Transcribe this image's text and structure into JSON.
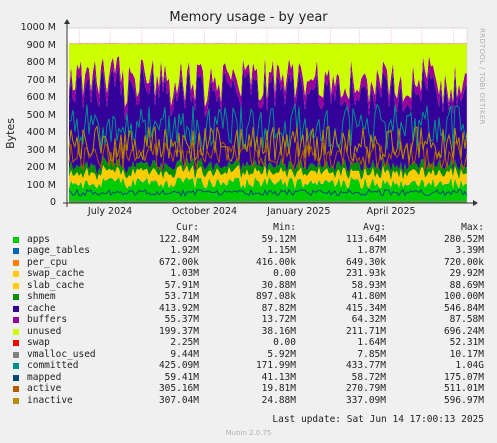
{
  "chart_data": {
    "type": "area",
    "title": "Memory usage - by year",
    "ylabel": "Bytes",
    "ylim": [
      0,
      1000000000
    ],
    "yticks": [
      "0",
      "100 M",
      "200 M",
      "300 M",
      "400 M",
      "500 M",
      "600 M",
      "700 M",
      "800 M",
      "900 M",
      "1000 M"
    ],
    "xticks": [
      "July 2024",
      "October 2024",
      "January 2025",
      "April 2025"
    ],
    "x_range": [
      "2024-05-20",
      "2025-06-14"
    ],
    "grid": true,
    "side_label": "RRDTOOL / TOBI OETIKER",
    "legend_headers": [
      "Cur:",
      "Min:",
      "Avg:",
      "Max:"
    ],
    "series": [
      {
        "name": "apps",
        "color": "#00cc00",
        "cur": "122.84M",
        "min": "59.12M",
        "avg": "113.64M",
        "max": "280.52M",
        "avg_mb": 113.6
      },
      {
        "name": "page_tables",
        "color": "#0066b3",
        "cur": "1.92M",
        "min": "1.15M",
        "avg": "1.87M",
        "max": "3.39M",
        "avg_mb": 1.9
      },
      {
        "name": "per_cpu",
        "color": "#ff8000",
        "cur": "672.00k",
        "min": "416.00k",
        "avg": "649.30k",
        "max": "720.00k",
        "avg_mb": 0.65
      },
      {
        "name": "swap_cache",
        "color": "#ffcc00",
        "cur": "1.03M",
        "min": "0.00",
        "avg": "231.93k",
        "max": "29.92M",
        "avg_mb": 0.23
      },
      {
        "name": "slab_cache",
        "color": "#ffcc00",
        "cur": "57.91M",
        "min": "30.88M",
        "avg": "58.93M",
        "max": "88.69M",
        "avg_mb": 58.9
      },
      {
        "name": "shmem",
        "color": "#008f00",
        "cur": "53.71M",
        "min": "897.08k",
        "avg": "41.80M",
        "max": "100.00M",
        "avg_mb": 41.8
      },
      {
        "name": "cache",
        "color": "#330099",
        "cur": "413.92M",
        "min": "87.82M",
        "avg": "415.34M",
        "max": "546.84M",
        "avg_mb": 415.3
      },
      {
        "name": "buffers",
        "color": "#990099",
        "cur": "55.37M",
        "min": "13.72M",
        "avg": "64.32M",
        "max": "87.58M",
        "avg_mb": 64.3
      },
      {
        "name": "unused",
        "color": "#ccff00",
        "cur": "199.37M",
        "min": "38.16M",
        "avg": "211.71M",
        "max": "696.24M",
        "avg_mb": 211.7
      },
      {
        "name": "swap",
        "color": "#ff0000",
        "cur": "2.25M",
        "min": "0.00",
        "avg": "1.64M",
        "max": "52.31M",
        "avg_mb": 1.6
      },
      {
        "name": "vmalloc_used",
        "color": "#808080",
        "cur": "9.44M",
        "min": "5.92M",
        "avg": "7.85M",
        "max": "10.17M",
        "avg_mb": 7.85
      },
      {
        "name": "committed",
        "color": "#008f8f",
        "cur": "425.09M",
        "min": "171.99M",
        "avg": "433.77M",
        "max": "1.04G",
        "avg_mb": 433.8
      },
      {
        "name": "mapped",
        "color": "#00487d",
        "cur": "59.41M",
        "min": "41.13M",
        "avg": "58.72M",
        "max": "175.07M",
        "avg_mb": 58.7
      },
      {
        "name": "active",
        "color": "#b35a00",
        "cur": "305.16M",
        "min": "19.81M",
        "avg": "270.79M",
        "max": "511.01M",
        "avg_mb": 270.8
      },
      {
        "name": "inactive",
        "color": "#b38f00",
        "cur": "307.04M",
        "min": "24.88M",
        "avg": "337.09M",
        "max": "596.97M",
        "avg_mb": 337.1
      }
    ]
  },
  "footer": {
    "last_update": "Last update: Sat Jun 14 17:00:13 2025",
    "credit": "Munin 2.0.75"
  }
}
